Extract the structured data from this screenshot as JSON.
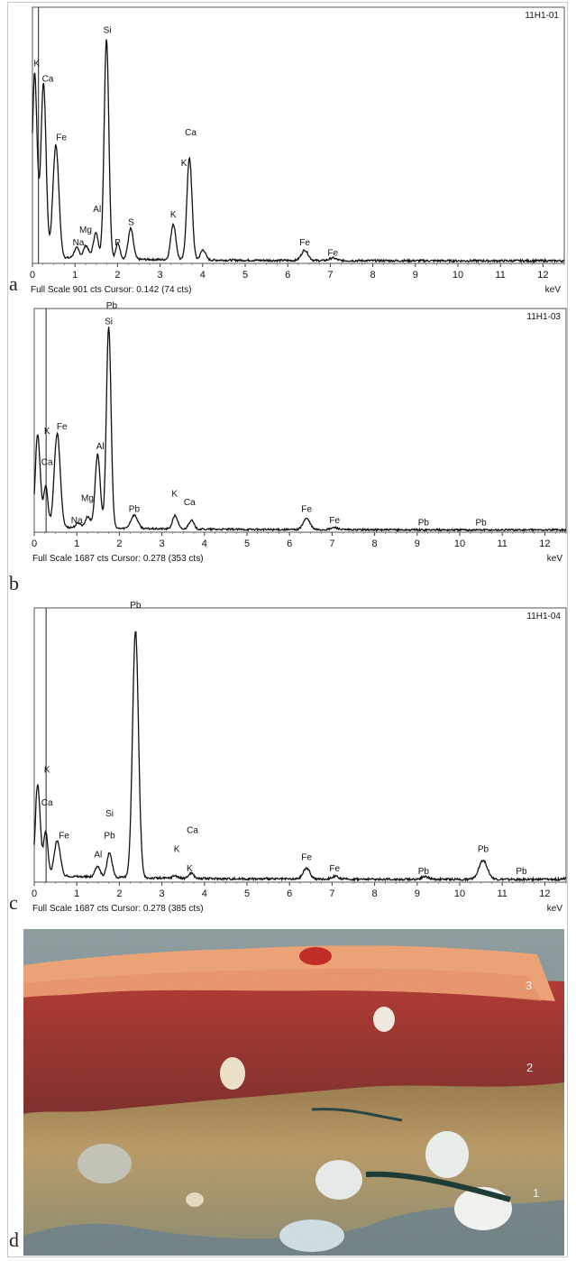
{
  "chart_data": [
    {
      "type": "line",
      "panel": "a",
      "sample_id": "11H1-01",
      "footer": "Full Scale 901 cts Cursor: 0.142  (74 cts)",
      "xlabel": "keV",
      "xlim": [
        0,
        12.5
      ],
      "ylim": [
        0,
        100
      ],
      "x_ticks": [
        "0",
        "1",
        "2",
        "3",
        "4",
        "5",
        "6",
        "7",
        "8",
        "9",
        "10",
        "11",
        "12"
      ],
      "cursor": 0.142,
      "peaks": [
        {
          "x": 0.05,
          "h": 72,
          "w": 0.06
        },
        {
          "x": 0.26,
          "h": 68,
          "w": 0.06
        },
        {
          "x": 0.55,
          "h": 44,
          "w": 0.07
        },
        {
          "x": 1.04,
          "h": 4,
          "w": 0.06
        },
        {
          "x": 1.26,
          "h": 5,
          "w": 0.06
        },
        {
          "x": 1.49,
          "h": 10,
          "w": 0.06
        },
        {
          "x": 1.74,
          "h": 86,
          "w": 0.055
        },
        {
          "x": 2.01,
          "h": 6,
          "w": 0.05
        },
        {
          "x": 2.31,
          "h": 12,
          "w": 0.06
        },
        {
          "x": 3.31,
          "h": 14,
          "w": 0.06
        },
        {
          "x": 3.69,
          "h": 40,
          "w": 0.06
        },
        {
          "x": 4.01,
          "h": 4,
          "w": 0.06
        },
        {
          "x": 6.4,
          "h": 4,
          "w": 0.08
        },
        {
          "x": 7.06,
          "h": 1,
          "w": 0.08
        }
      ],
      "labels": [
        {
          "text": "K",
          "x": 0.1,
          "y": 77
        },
        {
          "text": "Ca",
          "x": 0.36,
          "y": 71
        },
        {
          "text": "Fe",
          "x": 0.68,
          "y": 48
        },
        {
          "text": "Na",
          "x": 1.08,
          "y": 7
        },
        {
          "text": "Mg",
          "x": 1.25,
          "y": 12
        },
        {
          "text": "Al",
          "x": 1.52,
          "y": 20
        },
        {
          "text": "P",
          "x": 2.0,
          "y": 7
        },
        {
          "text": "S",
          "x": 2.32,
          "y": 15
        },
        {
          "text": "Si",
          "x": 1.76,
          "y": 90
        },
        {
          "text": "K",
          "x": 3.31,
          "y": 18
        },
        {
          "text": "Ca",
          "x": 3.72,
          "y": 50
        },
        {
          "text": "K",
          "x": 3.56,
          "y": 38
        },
        {
          "text": "Fe",
          "x": 6.4,
          "y": 7
        },
        {
          "text": "Fe",
          "x": 7.06,
          "y": 3
        }
      ]
    },
    {
      "type": "line",
      "panel": "b",
      "sample_id": "11H1-03",
      "footer": "Full Scale 1687 cts Cursor: 0.278  (353 cts)",
      "xlabel": "keV",
      "xlim": [
        0,
        12.5
      ],
      "ylim": [
        0,
        100
      ],
      "x_ticks": [
        "0",
        "1",
        "2",
        "3",
        "4",
        "5",
        "6",
        "7",
        "8",
        "9",
        "10",
        "11",
        "12"
      ],
      "cursor": 0.278,
      "peaks": [
        {
          "x": 0.08,
          "h": 41,
          "w": 0.06
        },
        {
          "x": 0.27,
          "h": 18,
          "w": 0.05
        },
        {
          "x": 0.54,
          "h": 42,
          "w": 0.07
        },
        {
          "x": 1.04,
          "h": 2,
          "w": 0.06
        },
        {
          "x": 1.26,
          "h": 5,
          "w": 0.06
        },
        {
          "x": 1.49,
          "h": 33,
          "w": 0.06
        },
        {
          "x": 1.75,
          "h": 90,
          "w": 0.055
        },
        {
          "x": 2.35,
          "h": 6,
          "w": 0.08
        },
        {
          "x": 3.31,
          "h": 6,
          "w": 0.06
        },
        {
          "x": 3.69,
          "h": 4,
          "w": 0.06
        },
        {
          "x": 6.4,
          "h": 5,
          "w": 0.08
        },
        {
          "x": 7.06,
          "h": 1,
          "w": 0.08
        }
      ],
      "labels": [
        {
          "text": "K",
          "x": 0.3,
          "y": 44
        },
        {
          "text": "Ca",
          "x": 0.3,
          "y": 30
        },
        {
          "text": "Fe",
          "x": 0.65,
          "y": 46
        },
        {
          "text": "Na",
          "x": 1.0,
          "y": 4
        },
        {
          "text": "Mg",
          "x": 1.25,
          "y": 14
        },
        {
          "text": "Al",
          "x": 1.55,
          "y": 37
        },
        {
          "text": "Pb",
          "x": 1.82,
          "y": 100
        },
        {
          "text": "Si",
          "x": 1.75,
          "y": 93
        },
        {
          "text": "Pb",
          "x": 2.35,
          "y": 9
        },
        {
          "text": "K",
          "x": 3.3,
          "y": 16
        },
        {
          "text": "Ca",
          "x": 3.65,
          "y": 12
        },
        {
          "text": "Fe",
          "x": 6.4,
          "y": 9
        },
        {
          "text": "Fe",
          "x": 7.06,
          "y": 4
        },
        {
          "text": "Pb",
          "x": 9.15,
          "y": 3
        },
        {
          "text": "Pb",
          "x": 10.5,
          "y": 3
        }
      ]
    },
    {
      "type": "line",
      "panel": "c",
      "sample_id": "11H1-04",
      "footer": "Full Scale 1687 cts Cursor: 0.278  (385 cts)",
      "xlabel": "keV",
      "xlim": [
        0,
        12.5
      ],
      "ylim": [
        0,
        100
      ],
      "x_ticks": [
        "0",
        "1",
        "2",
        "3",
        "4",
        "5",
        "6",
        "7",
        "8",
        "9",
        "10",
        "11",
        "12"
      ],
      "cursor": 0.278,
      "peaks": [
        {
          "x": 0.08,
          "h": 33,
          "w": 0.06
        },
        {
          "x": 0.27,
          "h": 16,
          "w": 0.05
        },
        {
          "x": 0.54,
          "h": 13,
          "w": 0.07
        },
        {
          "x": 1.49,
          "h": 4,
          "w": 0.06
        },
        {
          "x": 1.77,
          "h": 9,
          "w": 0.06
        },
        {
          "x": 2.38,
          "h": 90,
          "w": 0.07
        },
        {
          "x": 3.31,
          "h": 1,
          "w": 0.06
        },
        {
          "x": 3.69,
          "h": 2,
          "w": 0.06
        },
        {
          "x": 6.4,
          "h": 4,
          "w": 0.08
        },
        {
          "x": 7.06,
          "h": 1,
          "w": 0.08
        },
        {
          "x": 9.18,
          "h": 1,
          "w": 0.08
        },
        {
          "x": 10.55,
          "h": 7,
          "w": 0.1
        },
        {
          "x": 12.62,
          "h": 1,
          "w": 0.1
        }
      ],
      "labels": [
        {
          "text": "K",
          "x": 0.3,
          "y": 40
        },
        {
          "text": "Ca",
          "x": 0.3,
          "y": 28
        },
        {
          "text": "Fe",
          "x": 0.7,
          "y": 16
        },
        {
          "text": "Al",
          "x": 1.5,
          "y": 9
        },
        {
          "text": "Si",
          "x": 1.77,
          "y": 24
        },
        {
          "text": "Pb",
          "x": 1.77,
          "y": 16
        },
        {
          "text": "Pb",
          "x": 2.38,
          "y": 100
        },
        {
          "text": "K",
          "x": 3.35,
          "y": 11
        },
        {
          "text": "Ca",
          "x": 3.72,
          "y": 18
        },
        {
          "text": "K",
          "x": 3.65,
          "y": 4
        },
        {
          "text": "Fe",
          "x": 6.4,
          "y": 8
        },
        {
          "text": "Fe",
          "x": 7.06,
          "y": 4
        },
        {
          "text": "Pb",
          "x": 9.15,
          "y": 3
        },
        {
          "text": "Pb",
          "x": 10.55,
          "y": 11
        },
        {
          "text": "Pb",
          "x": 11.45,
          "y": 3
        }
      ]
    }
  ],
  "panel_letters": [
    "a",
    "b",
    "c",
    "d"
  ],
  "photo": {
    "layer_labels": [
      "3",
      "2",
      "1"
    ],
    "colors": {
      "top_layer": "#f0a070",
      "red_layer": "#a02828",
      "ground_layer": "#b89860",
      "background": "#7a8c90"
    }
  },
  "colors": {
    "trace": "#111111",
    "frame": "#c8c8c8"
  }
}
